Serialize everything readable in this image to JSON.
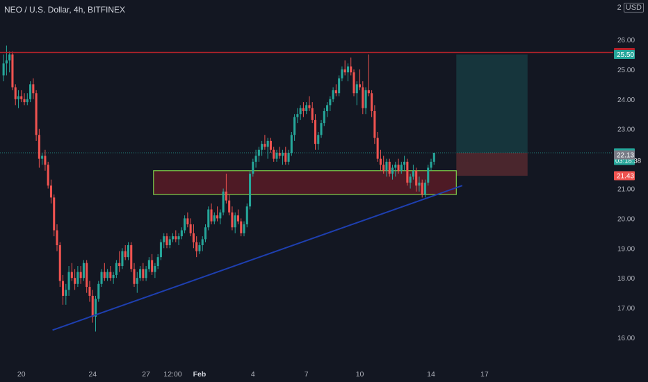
{
  "header": {
    "symbol_title": "NEO / U.S. Dollar, 4h, BITFINEX",
    "scale_number": "2",
    "currency": "USD"
  },
  "colors": {
    "background": "#131722",
    "up": "#26a69a",
    "down": "#ef5350",
    "resistance_line": "#b2222a",
    "trendline": "#1e3fb0",
    "zone_border": "#7ccf4b",
    "zone_fill": "rgba(128,30,40,0.55)",
    "target_fill": "rgba(38,166,154,0.22)",
    "stop_fill": "rgba(239,83,80,0.25)"
  },
  "chart_data": {
    "type": "candlestick",
    "title": "NEO / U.S. Dollar, 4h, BITFINEX",
    "ylim": [
      15.5,
      26.0
    ],
    "y_ticks": [
      "16.00",
      "17.00",
      "18.00",
      "19.00",
      "20.00",
      "21.00",
      "22.00",
      "23.00",
      "24.00",
      "25.00",
      "26.00"
    ],
    "x_ticks": [
      {
        "label": "20",
        "bar": 6
      },
      {
        "label": "24",
        "bar": 30
      },
      {
        "label": "27",
        "bar": 48
      },
      {
        "label": "12:00",
        "bar": 57
      },
      {
        "label": "Feb",
        "bar": 66
      },
      {
        "label": "4",
        "bar": 84
      },
      {
        "label": "7",
        "bar": 102
      },
      {
        "label": "10",
        "bar": 120
      },
      {
        "label": "14",
        "bar": 144
      },
      {
        "label": "17",
        "bar": 162
      }
    ],
    "candles": [
      [
        24.8,
        25.5,
        24.6,
        25.2
      ],
      [
        25.2,
        25.8,
        24.8,
        25.3
      ],
      [
        25.3,
        25.6,
        24.9,
        25.5
      ],
      [
        25.5,
        25.6,
        24.3,
        24.4
      ],
      [
        24.4,
        24.5,
        23.8,
        24.0
      ],
      [
        24.0,
        24.3,
        23.7,
        24.1
      ],
      [
        24.1,
        24.3,
        23.9,
        24.0
      ],
      [
        24.0,
        24.2,
        23.8,
        23.9
      ],
      [
        23.9,
        24.2,
        23.8,
        24.0
      ],
      [
        24.0,
        24.6,
        23.9,
        24.5
      ],
      [
        24.5,
        24.7,
        24.0,
        24.2
      ],
      [
        24.2,
        24.3,
        22.6,
        22.8
      ],
      [
        22.8,
        23.0,
        21.7,
        22.0
      ],
      [
        22.0,
        22.2,
        21.8,
        22.1
      ],
      [
        22.1,
        22.3,
        21.6,
        21.8
      ],
      [
        21.8,
        21.9,
        21.0,
        21.1
      ],
      [
        21.1,
        21.3,
        20.5,
        20.7
      ],
      [
        20.7,
        20.8,
        19.4,
        19.6
      ],
      [
        19.6,
        19.8,
        18.9,
        19.1
      ],
      [
        19.1,
        19.2,
        17.7,
        17.9
      ],
      [
        17.9,
        18.1,
        17.1,
        17.4
      ],
      [
        17.4,
        17.8,
        17.1,
        17.6
      ],
      [
        17.6,
        18.4,
        17.4,
        18.2
      ],
      [
        18.2,
        18.5,
        17.9,
        18.0
      ],
      [
        18.0,
        18.3,
        17.6,
        17.8
      ],
      [
        17.8,
        18.4,
        17.7,
        18.2
      ],
      [
        18.2,
        18.4,
        17.8,
        18.0
      ],
      [
        18.0,
        18.6,
        17.9,
        18.5
      ],
      [
        18.5,
        18.6,
        17.5,
        17.7
      ],
      [
        17.7,
        17.9,
        17.2,
        17.4
      ],
      [
        17.4,
        17.6,
        16.5,
        16.7
      ],
      [
        16.7,
        17.4,
        16.2,
        17.3
      ],
      [
        17.3,
        17.9,
        17.2,
        17.8
      ],
      [
        17.8,
        18.3,
        17.7,
        18.2
      ],
      [
        18.2,
        18.5,
        17.9,
        18.0
      ],
      [
        18.0,
        18.3,
        17.9,
        18.2
      ],
      [
        18.2,
        18.4,
        17.9,
        18.0
      ],
      [
        18.0,
        18.2,
        17.8,
        18.1
      ],
      [
        18.1,
        18.6,
        18.0,
        18.5
      ],
      [
        18.5,
        18.9,
        18.2,
        18.4
      ],
      [
        18.4,
        19.0,
        18.3,
        18.9
      ],
      [
        18.9,
        19.1,
        18.6,
        18.7
      ],
      [
        18.7,
        19.2,
        18.6,
        19.1
      ],
      [
        19.1,
        19.2,
        18.2,
        18.3
      ],
      [
        18.3,
        18.5,
        17.7,
        17.8
      ],
      [
        17.8,
        18.2,
        17.5,
        18.0
      ],
      [
        18.0,
        18.4,
        17.9,
        18.3
      ],
      [
        18.3,
        18.5,
        17.9,
        18.0
      ],
      [
        18.0,
        18.4,
        17.9,
        18.3
      ],
      [
        18.3,
        18.7,
        18.2,
        18.6
      ],
      [
        18.6,
        18.8,
        18.1,
        18.2
      ],
      [
        18.2,
        18.5,
        18.0,
        18.4
      ],
      [
        18.4,
        18.8,
        18.3,
        18.7
      ],
      [
        18.7,
        19.3,
        18.6,
        19.2
      ],
      [
        19.2,
        19.5,
        19.0,
        19.4
      ],
      [
        19.4,
        19.5,
        19.0,
        19.1
      ],
      [
        19.1,
        19.4,
        19.0,
        19.3
      ],
      [
        19.3,
        19.5,
        19.2,
        19.4
      ],
      [
        19.4,
        19.6,
        19.2,
        19.3
      ],
      [
        19.3,
        19.5,
        19.1,
        19.4
      ],
      [
        19.4,
        19.7,
        19.3,
        19.6
      ],
      [
        19.6,
        20.1,
        19.5,
        20.0
      ],
      [
        20.0,
        20.2,
        19.7,
        19.8
      ],
      [
        19.8,
        20.0,
        19.4,
        19.5
      ],
      [
        19.5,
        19.8,
        19.0,
        19.2
      ],
      [
        19.2,
        19.4,
        18.7,
        18.9
      ],
      [
        18.9,
        19.2,
        18.8,
        19.1
      ],
      [
        19.1,
        19.4,
        18.9,
        19.3
      ],
      [
        19.3,
        19.8,
        19.2,
        19.7
      ],
      [
        19.7,
        20.4,
        19.6,
        20.3
      ],
      [
        20.3,
        20.5,
        19.8,
        19.9
      ],
      [
        19.9,
        20.2,
        19.8,
        20.1
      ],
      [
        20.1,
        20.4,
        19.9,
        20.0
      ],
      [
        20.0,
        20.3,
        19.8,
        20.2
      ],
      [
        20.2,
        21.0,
        20.1,
        20.9
      ],
      [
        20.9,
        21.5,
        20.5,
        20.6
      ],
      [
        20.6,
        20.8,
        20.1,
        20.2
      ],
      [
        20.2,
        20.4,
        19.6,
        19.7
      ],
      [
        19.7,
        20.2,
        19.5,
        20.1
      ],
      [
        20.1,
        20.3,
        19.8,
        19.9
      ],
      [
        19.9,
        20.0,
        19.4,
        19.5
      ],
      [
        19.5,
        19.9,
        19.4,
        19.8
      ],
      [
        19.8,
        20.5,
        19.7,
        20.4
      ],
      [
        20.4,
        21.6,
        20.3,
        21.5
      ],
      [
        21.5,
        22.0,
        21.4,
        21.9
      ],
      [
        21.9,
        22.3,
        21.7,
        22.1
      ],
      [
        22.1,
        22.4,
        21.9,
        22.3
      ],
      [
        22.3,
        22.6,
        22.1,
        22.5
      ],
      [
        22.5,
        22.8,
        22.3,
        22.4
      ],
      [
        22.4,
        22.7,
        22.0,
        22.6
      ],
      [
        22.6,
        22.7,
        22.2,
        22.3
      ],
      [
        22.3,
        22.4,
        21.9,
        22.0
      ],
      [
        22.0,
        22.3,
        21.9,
        22.2
      ],
      [
        22.2,
        22.4,
        22.0,
        22.1
      ],
      [
        22.1,
        22.3,
        21.8,
        22.2
      ],
      [
        22.2,
        22.4,
        21.8,
        21.9
      ],
      [
        21.9,
        22.3,
        21.8,
        22.2
      ],
      [
        22.2,
        22.9,
        22.1,
        22.8
      ],
      [
        22.8,
        23.5,
        22.6,
        23.4
      ],
      [
        23.4,
        23.7,
        23.2,
        23.5
      ],
      [
        23.5,
        23.8,
        23.3,
        23.7
      ],
      [
        23.7,
        23.9,
        23.4,
        23.6
      ],
      [
        23.6,
        23.9,
        23.5,
        23.8
      ],
      [
        23.8,
        24.1,
        23.6,
        23.7
      ],
      [
        23.7,
        23.9,
        23.2,
        23.3
      ],
      [
        23.3,
        23.5,
        22.3,
        22.5
      ],
      [
        22.5,
        22.9,
        22.3,
        22.8
      ],
      [
        22.8,
        23.3,
        22.7,
        23.2
      ],
      [
        23.2,
        23.7,
        23.1,
        23.6
      ],
      [
        23.6,
        23.9,
        23.4,
        23.8
      ],
      [
        23.8,
        24.1,
        23.6,
        24.0
      ],
      [
        24.0,
        24.4,
        23.9,
        24.3
      ],
      [
        24.3,
        24.5,
        24.1,
        24.2
      ],
      [
        24.2,
        24.8,
        24.1,
        24.7
      ],
      [
        24.7,
        25.1,
        24.6,
        25.0
      ],
      [
        25.0,
        25.3,
        24.8,
        24.9
      ],
      [
        24.9,
        25.2,
        24.6,
        25.1
      ],
      [
        25.1,
        25.4,
        24.8,
        24.9
      ],
      [
        24.9,
        25.0,
        24.1,
        24.2
      ],
      [
        24.2,
        24.6,
        23.8,
        24.5
      ],
      [
        24.5,
        25.0,
        24.3,
        24.4
      ],
      [
        24.4,
        24.6,
        23.5,
        23.7
      ],
      [
        23.7,
        24.4,
        23.5,
        24.3
      ],
      [
        24.3,
        25.5,
        24.1,
        24.2
      ],
      [
        24.2,
        24.3,
        23.4,
        23.6
      ],
      [
        23.6,
        23.8,
        22.5,
        22.7
      ],
      [
        22.7,
        22.9,
        21.9,
        22.0
      ],
      [
        22.0,
        22.3,
        21.6,
        21.8
      ],
      [
        21.8,
        22.1,
        21.5,
        21.6
      ],
      [
        21.6,
        22.0,
        21.4,
        21.9
      ],
      [
        21.9,
        22.0,
        21.4,
        21.5
      ],
      [
        21.5,
        21.8,
        21.3,
        21.7
      ],
      [
        21.7,
        21.9,
        21.4,
        21.8
      ],
      [
        21.8,
        22.0,
        21.5,
        21.6
      ],
      [
        21.6,
        21.9,
        21.5,
        21.8
      ],
      [
        21.8,
        22.1,
        21.6,
        21.9
      ],
      [
        21.9,
        22.0,
        21.1,
        21.2
      ],
      [
        21.2,
        21.5,
        21.0,
        21.4
      ],
      [
        21.4,
        21.8,
        21.3,
        21.6
      ],
      [
        21.6,
        21.7,
        20.9,
        21.1
      ],
      [
        21.1,
        21.4,
        20.9,
        21.2
      ],
      [
        21.2,
        21.3,
        20.7,
        20.8
      ],
      [
        20.8,
        21.3,
        20.7,
        21.2
      ],
      [
        21.2,
        21.8,
        21.1,
        21.7
      ],
      [
        21.7,
        22.0,
        21.6,
        21.9
      ],
      [
        21.9,
        22.2,
        21.8,
        22.2
      ]
    ],
    "current_price": 22.2,
    "horizontal_resistance": 25.57,
    "demand_zone": {
      "from_bar": 51,
      "to_bar": 153,
      "low": 20.8,
      "high": 21.6
    },
    "trendline": {
      "from": {
        "bar": 17,
        "price": 16.25
      },
      "to": {
        "bar": 155,
        "price": 21.1
      }
    },
    "position": {
      "entry": 22.2,
      "target": 25.5,
      "stop": 21.43,
      "from_bar": 153,
      "to_bar": 177
    },
    "price_labels": [
      {
        "price": 25.57,
        "text": "25.57",
        "color": "#b2222a"
      },
      {
        "price": 25.5,
        "text": "25.50",
        "color": "#26a69a"
      },
      {
        "price": 22.2,
        "text": "22.20",
        "sub": "03:18:38",
        "color": "#26a69a"
      },
      {
        "price": 22.13,
        "text": "22.13",
        "color": "#787b86"
      },
      {
        "price": 21.43,
        "text": "21.43",
        "color": "#ef5350"
      }
    ]
  }
}
